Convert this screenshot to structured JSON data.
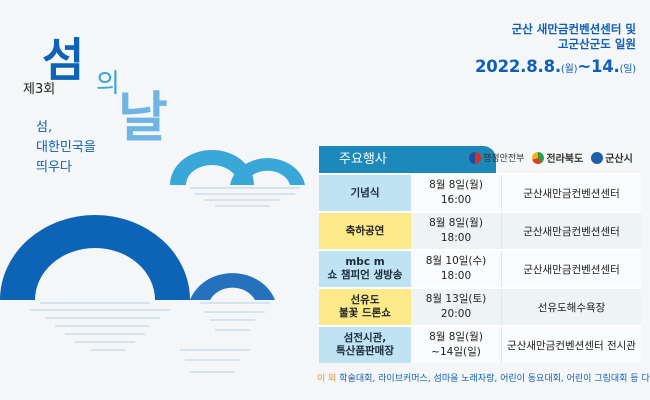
{
  "edition": "제3회",
  "title": {
    "char1": "섬",
    "char2": "의",
    "char3": "날"
  },
  "slogan": [
    "섬,",
    "대한민국을",
    "띄우다"
  ],
  "venue": [
    "군산 새만금컨벤션센터 및",
    "고군산군도 일원"
  ],
  "date": {
    "main": "2022.8.8.",
    "dow1": "(월)",
    "sep": "~14.",
    "dow2": "(일)"
  },
  "table": {
    "header": "주요행사",
    "logos": [
      {
        "name": "행정안전부",
        "icon": "mois-logo-icon"
      },
      {
        "name": "전라북도",
        "icon": "jeonbuk-logo-icon"
      },
      {
        "name": "군산시",
        "icon": "gunsan-logo-icon"
      }
    ],
    "rows": [
      {
        "event": [
          "기념식"
        ],
        "time": [
          "8월 8일(월)",
          "16:00"
        ],
        "place": "군산새만금컨벤션센터",
        "highlight": false
      },
      {
        "event": [
          "축하공연"
        ],
        "time": [
          "8월 8일(월)",
          "18:00"
        ],
        "place": "군산새만금컨벤션센터",
        "highlight": true
      },
      {
        "event": [
          "mbc m",
          "쇼 챔피언 생방송"
        ],
        "time": [
          "8월 10일(수)",
          "18:00"
        ],
        "place": "군산새만금컨벤션센터",
        "highlight": false
      },
      {
        "event": [
          "선유도",
          "불꽃 드론쇼"
        ],
        "time": [
          "8월 13일(토)",
          "20:00"
        ],
        "place": "선유도해수욕장",
        "highlight": true
      },
      {
        "event": [
          "섬전시관,",
          "특산품판매장"
        ],
        "time": [
          "8월 8일(월)",
          "~14일(일)"
        ],
        "place": "군산새만금컨벤션센터 전시관",
        "highlight": false
      }
    ]
  },
  "footnote": {
    "prefix": "이 외",
    "text": "학술대회, 라이브커머스, 섬마을 노래자랑, 어린이 동요대회, 어린이 그림대회 등 다양한 부대행사"
  },
  "colors": {
    "primary": "#0f5fb4",
    "accent": "#1b89b9",
    "highlight": "#fbe98a",
    "cell": "#bfe3f3"
  }
}
